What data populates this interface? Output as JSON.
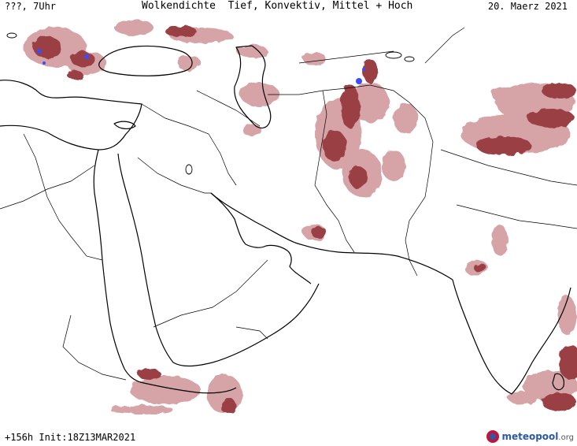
{
  "header": {
    "left_text": "???, 7Uhr",
    "title": "Wolkendichte  Tief, Konvektiv, Mittel + Hoch",
    "date": "20. Maerz 2021"
  },
  "footer": {
    "run_text": "+156h  Init:18Z13MAR2021",
    "logo_name": "meteopool",
    "logo_domain": ".org"
  },
  "colors": {
    "cloud_dark": "#9a3f44",
    "cloud_light": "#d6a3a7",
    "precip_blue": "#3b4cff",
    "coastline": "#000000",
    "border": "#000000"
  }
}
